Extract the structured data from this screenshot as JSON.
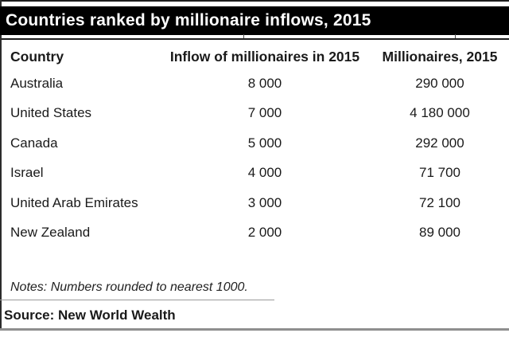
{
  "title": "Countries ranked by millionaire inflows, 2015",
  "table": {
    "columns": [
      "Country",
      "Inflow of millionaires in 2015",
      "Millionaires, 2015"
    ],
    "rows": [
      {
        "country": "Australia",
        "inflow": "8 000",
        "millionaires": "290 000"
      },
      {
        "country": "United States",
        "inflow": "7 000",
        "millionaires": "4 180 000"
      },
      {
        "country": "Canada",
        "inflow": "5 000",
        "millionaires": "292 000"
      },
      {
        "country": "Israel",
        "inflow": "4 000",
        "millionaires": "71 700"
      },
      {
        "country": "United Arab Emirates",
        "inflow": "3 000",
        "millionaires": "72 100"
      },
      {
        "country": "New Zealand",
        "inflow": "2 000",
        "millionaires": "89 000"
      }
    ]
  },
  "notes": "Notes: Numbers rounded to nearest 1000.",
  "source": "Source: New World Wealth",
  "colors": {
    "title_bar_bg": "#000000",
    "title_bar_text": "#ffffff",
    "body_text": "#1a1a1a",
    "header_rule": "#1c1c1c",
    "bottom_rule": "#8f8f8f"
  },
  "chart_data": {
    "type": "table",
    "title": "Countries ranked by millionaire inflows, 2015",
    "columns": [
      "Country",
      "Inflow of millionaires in 2015",
      "Millionaires, 2015"
    ],
    "rows": [
      [
        "Australia",
        8000,
        290000
      ],
      [
        "United States",
        7000,
        4180000
      ],
      [
        "Canada",
        5000,
        292000
      ],
      [
        "Israel",
        4000,
        71700
      ],
      [
        "United Arab Emirates",
        3000,
        72100
      ],
      [
        "New Zealand",
        2000,
        89000
      ]
    ],
    "notes": "Numbers rounded to nearest 1000.",
    "source": "New World Wealth"
  }
}
